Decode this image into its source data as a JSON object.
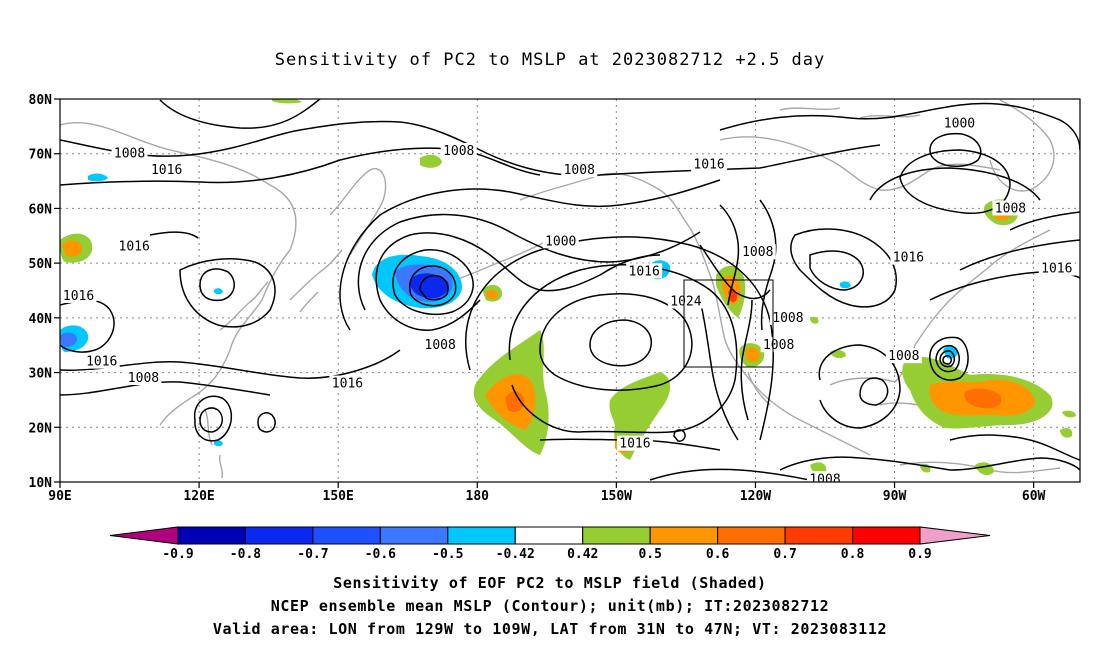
{
  "title": "Sensitivity of PC2 to MSLP at 2023082712 +2.5 day",
  "lat_labels": [
    "80N",
    "70N",
    "60N",
    "50N",
    "40N",
    "30N",
    "20N",
    "10N"
  ],
  "lon_labels": [
    "90E",
    "120E",
    "150E",
    "180",
    "150W",
    "120W",
    "90W",
    "60W"
  ],
  "colorbar": {
    "ticks": [
      "-0.9",
      "-0.8",
      "-0.7",
      "-0.6",
      "-0.5",
      "-0.42",
      "0.42",
      "0.5",
      "0.6",
      "0.7",
      "0.8",
      "0.9"
    ],
    "colors": {
      "below": "#b0007f",
      "neg": [
        "#0000b4",
        "#0a28f0",
        "#1e50ff",
        "#3c78ff",
        "#00c8ff"
      ],
      "zero": "#ffffff",
      "pos": [
        "#96cd32",
        "#ff9600",
        "#ff6e00",
        "#ff3c00",
        "#ff0000"
      ],
      "above": "#f0a0c8"
    }
  },
  "contour_labels": [
    {
      "text": "1008",
      "lon": 105,
      "lat": 70
    },
    {
      "text": "1008",
      "lon": 176,
      "lat": 70.5
    },
    {
      "text": "1008",
      "lon": -158,
      "lat": 67
    },
    {
      "text": "1016",
      "lon": -130,
      "lat": 68
    },
    {
      "text": "1000",
      "lon": -76,
      "lat": 75.5
    },
    {
      "text": "1008",
      "lon": -65,
      "lat": 60
    },
    {
      "text": "1016",
      "lon": 113,
      "lat": 67
    },
    {
      "text": "1000",
      "lon": -162,
      "lat": 54
    },
    {
      "text": "1016",
      "lon": 106,
      "lat": 53
    },
    {
      "text": "1016",
      "lon": 94,
      "lat": 44
    },
    {
      "text": "1016",
      "lon": -144,
      "lat": 48.5
    },
    {
      "text": "1024",
      "lon": -135,
      "lat": 43
    },
    {
      "text": "1008",
      "lon": -119.5,
      "lat": 52
    },
    {
      "text": "1016",
      "lon": -87,
      "lat": 51
    },
    {
      "text": "1016",
      "lon": -55,
      "lat": 49
    },
    {
      "text": "1008",
      "lon": 172,
      "lat": 35
    },
    {
      "text": "1008",
      "lon": -113,
      "lat": 40
    },
    {
      "text": "1008",
      "lon": -115,
      "lat": 35
    },
    {
      "text": "1016",
      "lon": 99,
      "lat": 32
    },
    {
      "text": "1008",
      "lon": 108,
      "lat": 29
    },
    {
      "text": "1016",
      "lon": 152,
      "lat": 28
    },
    {
      "text": "1008",
      "lon": -88,
      "lat": 33
    },
    {
      "text": "1016",
      "lon": -146,
      "lat": 17
    },
    {
      "text": "1008",
      "lon": -105,
      "lat": 10.5
    }
  ],
  "captions": [
    "Sensitivity of EOF PC2 to MSLP field (Shaded)",
    "NCEP ensemble mean MSLP (Contour); unit(mb); IT:2023082712",
    "Valid area: LON from 129W to 109W, LAT from 31N to 47N; VT: 2023083112"
  ]
}
